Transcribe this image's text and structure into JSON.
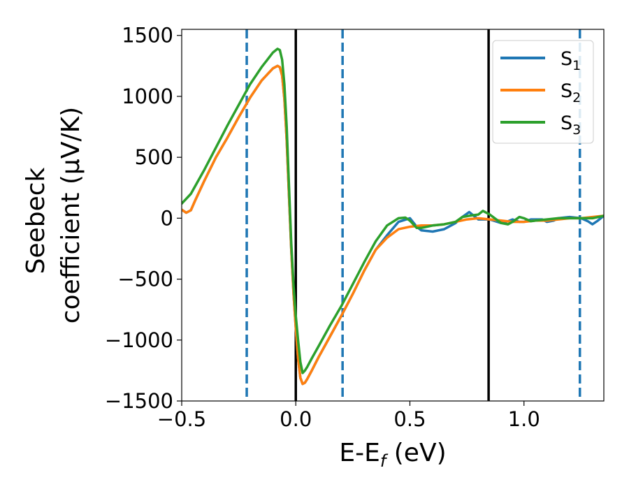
{
  "chart_data": {
    "type": "line",
    "xlabel": "E-E",
    "xlabel_sub": "f",
    "xlabel_unit": " (eV)",
    "ylabel_line1": "Seebeck",
    "ylabel_line2": "coefficient  (μV/K)",
    "xlim": [
      -0.5,
      1.35
    ],
    "ylim": [
      -1500,
      1550
    ],
    "xticks": [
      -0.5,
      0.0,
      0.5,
      1.0
    ],
    "xtick_labels": [
      "−0.5",
      "0.0",
      "0.5",
      "1.0"
    ],
    "yticks": [
      -1500,
      -1000,
      -500,
      0,
      500,
      1000,
      1500
    ],
    "ytick_labels": [
      "−1500",
      "−1000",
      "−500",
      "0",
      "500",
      "1000",
      "1500"
    ],
    "grid": false,
    "legend": "top-right",
    "vlines_solid": [
      0.0,
      0.845
    ],
    "vlines_dashed": [
      -0.215,
      0.205,
      1.245
    ],
    "vline_solid_color": "#000000",
    "vline_dashed_color": "#1f77b4",
    "series": [
      {
        "name": "S",
        "sub": "1",
        "color": "#1f77b4",
        "x": [
          -0.5,
          -0.48,
          -0.46,
          -0.44,
          -0.4,
          -0.35,
          -0.3,
          -0.25,
          -0.2,
          -0.15,
          -0.1,
          -0.08,
          -0.07,
          -0.06,
          -0.05,
          -0.04,
          -0.03,
          -0.02,
          -0.01,
          0.0,
          0.01,
          0.02,
          0.03,
          0.04,
          0.05,
          0.07,
          0.1,
          0.15,
          0.2,
          0.25,
          0.3,
          0.35,
          0.4,
          0.45,
          0.5,
          0.53,
          0.55,
          0.6,
          0.65,
          0.7,
          0.73,
          0.76,
          0.8,
          0.85,
          0.9,
          0.93,
          0.95,
          0.98,
          1.0,
          1.03,
          1.05,
          1.08,
          1.1,
          1.13,
          1.15,
          1.2,
          1.25,
          1.28,
          1.3,
          1.32,
          1.35
        ],
        "y": [
          70,
          45,
          65,
          150,
          310,
          500,
          660,
          830,
          990,
          1130,
          1230,
          1250,
          1240,
          1170,
          980,
          640,
          200,
          -250,
          -620,
          -900,
          -1150,
          -1310,
          -1360,
          -1350,
          -1320,
          -1250,
          -1140,
          -970,
          -800,
          -620,
          -430,
          -260,
          -140,
          -30,
          0,
          -70,
          -100,
          -110,
          -90,
          -40,
          10,
          50,
          -10,
          -10,
          -40,
          -25,
          -10,
          -30,
          -30,
          -10,
          -10,
          -10,
          -30,
          -20,
          0,
          10,
          0,
          -25,
          -50,
          -25,
          20
        ]
      },
      {
        "name": "S",
        "sub": "2",
        "color": "#ff7f0e",
        "x": [
          -0.5,
          -0.48,
          -0.46,
          -0.44,
          -0.4,
          -0.35,
          -0.3,
          -0.25,
          -0.2,
          -0.15,
          -0.1,
          -0.08,
          -0.07,
          -0.06,
          -0.05,
          -0.04,
          -0.03,
          -0.02,
          -0.01,
          0.0,
          0.01,
          0.02,
          0.03,
          0.04,
          0.05,
          0.07,
          0.1,
          0.15,
          0.2,
          0.25,
          0.3,
          0.35,
          0.4,
          0.45,
          0.5,
          0.55,
          0.6,
          0.65,
          0.7,
          0.75,
          0.8,
          0.85,
          0.9,
          0.95,
          1.0,
          1.05,
          1.1,
          1.15,
          1.2,
          1.25,
          1.3,
          1.35
        ],
        "y": [
          70,
          45,
          65,
          150,
          310,
          500,
          660,
          830,
          990,
          1130,
          1230,
          1250,
          1240,
          1170,
          980,
          640,
          200,
          -250,
          -620,
          -900,
          -1150,
          -1310,
          -1360,
          -1350,
          -1320,
          -1250,
          -1140,
          -970,
          -800,
          -620,
          -430,
          -260,
          -160,
          -90,
          -70,
          -60,
          -60,
          -50,
          -30,
          -10,
          0,
          -10,
          -20,
          -30,
          -30,
          -20,
          -20,
          -10,
          0,
          0,
          10,
          20
        ]
      },
      {
        "name": "S",
        "sub": "3",
        "color": "#2ca02c",
        "x": [
          -0.5,
          -0.46,
          -0.4,
          -0.35,
          -0.3,
          -0.25,
          -0.2,
          -0.15,
          -0.1,
          -0.08,
          -0.07,
          -0.06,
          -0.05,
          -0.04,
          -0.03,
          -0.02,
          -0.01,
          0.0,
          0.01,
          0.02,
          0.03,
          0.04,
          0.05,
          0.07,
          0.1,
          0.15,
          0.2,
          0.25,
          0.3,
          0.35,
          0.4,
          0.45,
          0.48,
          0.5,
          0.53,
          0.55,
          0.6,
          0.65,
          0.7,
          0.73,
          0.76,
          0.8,
          0.82,
          0.85,
          0.9,
          0.93,
          0.95,
          0.98,
          1.0,
          1.03,
          1.05,
          1.1,
          1.15,
          1.2,
          1.25,
          1.3,
          1.35
        ],
        "y": [
          120,
          200,
          400,
          580,
          760,
          930,
          1100,
          1240,
          1360,
          1390,
          1380,
          1300,
          1100,
          750,
          280,
          -200,
          -550,
          -800,
          -1000,
          -1180,
          -1270,
          -1250,
          -1220,
          -1150,
          -1050,
          -880,
          -720,
          -540,
          -360,
          -190,
          -60,
          0,
          5,
          -20,
          -80,
          -80,
          -60,
          -50,
          -30,
          10,
          20,
          30,
          60,
          30,
          -40,
          -50,
          -30,
          10,
          0,
          -25,
          -20,
          -10,
          0,
          0,
          0,
          0,
          20
        ]
      }
    ]
  }
}
